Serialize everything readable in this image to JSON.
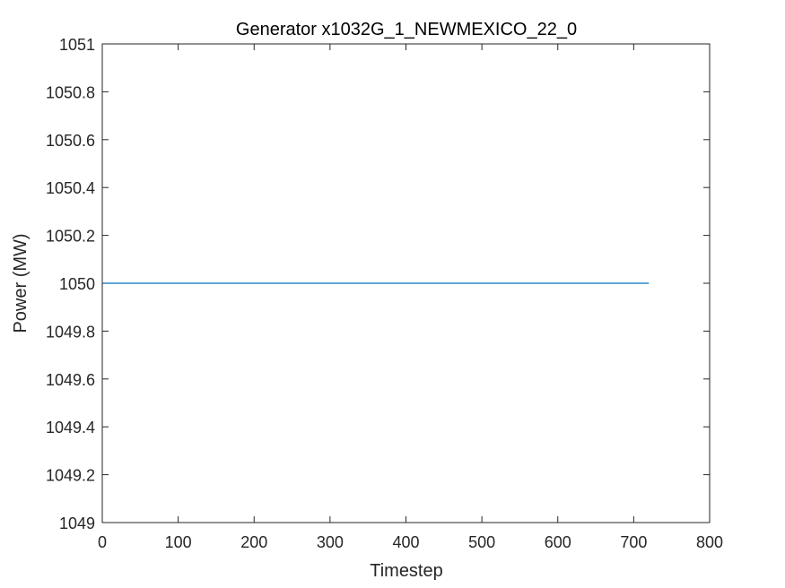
{
  "chart_data": {
    "type": "line",
    "title": "Generator x1032G_1_NEWMEXICO_22_0",
    "xlabel": "Timestep",
    "ylabel": "Power (MW)",
    "xlim": [
      0,
      800
    ],
    "ylim": [
      1049,
      1051
    ],
    "xticks": [
      0,
      100,
      200,
      300,
      400,
      500,
      600,
      700,
      800
    ],
    "yticks": [
      1049,
      1049.2,
      1049.4,
      1049.6,
      1049.8,
      1050,
      1050.2,
      1050.4,
      1050.6,
      1050.8,
      1051
    ],
    "xtick_labels": [
      "0",
      "100",
      "200",
      "300",
      "400",
      "500",
      "600",
      "700",
      "800"
    ],
    "ytick_labels": [
      "1049",
      "1049.2",
      "1049.4",
      "1049.6",
      "1049.8",
      "1050",
      "1050.2",
      "1050.4",
      "1050.6",
      "1050.8",
      "1051"
    ],
    "grid": false,
    "series": [
      {
        "x": [
          1,
          720
        ],
        "y": [
          1050,
          1050
        ],
        "color": "#0072BD"
      }
    ]
  }
}
